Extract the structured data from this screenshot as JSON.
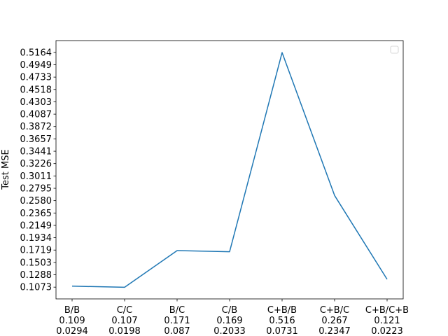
{
  "chart_data": {
    "type": "line",
    "title": "",
    "xlabel": "",
    "ylabel": "Test MSE",
    "categories": [
      [
        "B/B",
        "0.109",
        "0.0294"
      ],
      [
        "C/C",
        "0.107",
        "0.0198"
      ],
      [
        "B/C",
        "0.171",
        "0.087"
      ],
      [
        "C/B",
        "0.169",
        "0.2033"
      ],
      [
        "C+B/B",
        "0.516",
        "0.0731"
      ],
      [
        "C+B/C",
        "0.267",
        "0.2347"
      ],
      [
        "C+B/C+B",
        "0.121",
        "0.0223"
      ]
    ],
    "series": [
      {
        "values": [
          0.109,
          0.107,
          0.171,
          0.169,
          0.516,
          0.267,
          0.121
        ],
        "color": "#1f77b4"
      }
    ],
    "yticks": [
      "0.1073",
      "0.1288",
      "0.1503",
      "0.1719",
      "0.1934",
      "0.2149",
      "0.2365",
      "0.2580",
      "0.2795",
      "0.3011",
      "0.3226",
      "0.3441",
      "0.3657",
      "0.3872",
      "0.4087",
      "0.4303",
      "0.4518",
      "0.4733",
      "0.4949",
      "0.5164"
    ],
    "ylim": [
      0.0868,
      0.5369
    ],
    "grid": false,
    "legend": {
      "position": "top-right",
      "entries": []
    }
  }
}
